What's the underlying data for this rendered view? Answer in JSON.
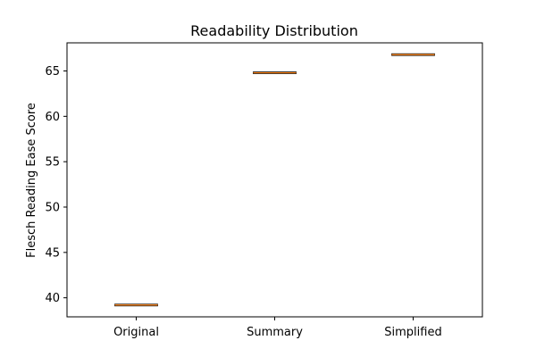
{
  "chart_data": {
    "type": "box",
    "title": "Readability Distribution",
    "xlabel": "",
    "ylabel": "Flesch Reading Ease Score",
    "categories": [
      "Original",
      "Summary",
      "Simplified"
    ],
    "values": [
      39.2,
      64.8,
      66.8
    ],
    "ylim": [
      37.9,
      68.1
    ],
    "yticks": [
      40,
      45,
      50,
      55,
      60,
      65
    ],
    "grid": false,
    "colors": {
      "box_edge": "#000000",
      "median": "#ff7f0e",
      "axes": "#000000"
    }
  }
}
